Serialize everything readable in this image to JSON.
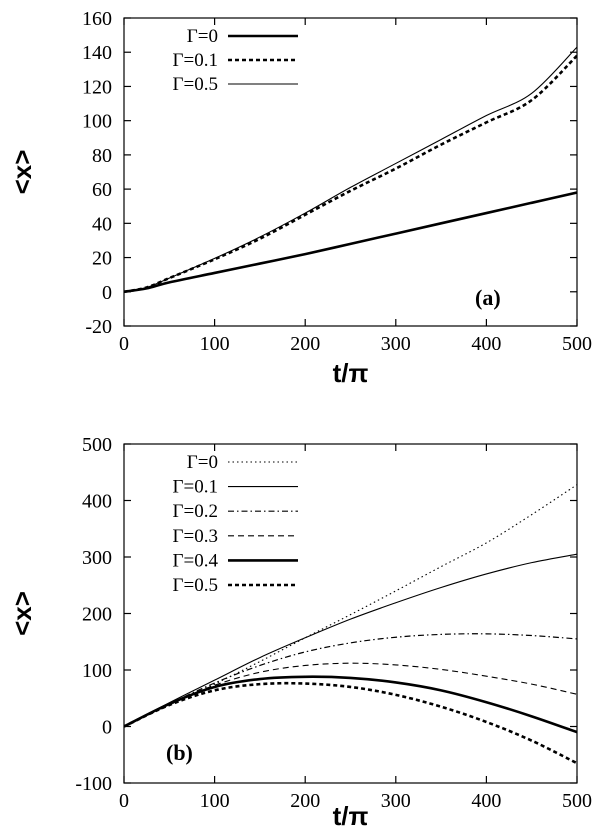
{
  "chart_data": [
    {
      "type": "line",
      "panel_label": "(a)",
      "xlabel": "t/π",
      "ylabel": "<x>",
      "xlim": [
        0,
        500
      ],
      "ylim": [
        -20,
        160
      ],
      "xticks": [
        "0",
        "100",
        "200",
        "300",
        "400",
        "500"
      ],
      "yticks": [
        "-20",
        "0",
        "20",
        "40",
        "60",
        "80",
        "100",
        "120",
        "140",
        "160"
      ],
      "legend_position": "top-left",
      "series": [
        {
          "name": "Γ=0",
          "style": "solid-thick",
          "x": [
            0,
            25,
            50,
            100,
            150,
            200,
            250,
            300,
            350,
            400,
            450,
            500
          ],
          "y": [
            0,
            2,
            5.5,
            11,
            16.5,
            22,
            28,
            34,
            40,
            46,
            52,
            58
          ]
        },
        {
          "name": "Γ=0.1",
          "style": "dashed-thick",
          "x": [
            0,
            25,
            50,
            100,
            150,
            200,
            250,
            300,
            350,
            400,
            450,
            500
          ],
          "y": [
            0,
            2.5,
            8,
            19,
            31,
            45,
            59,
            72,
            86,
            99,
            112,
            138
          ]
        },
        {
          "name": "Γ=0.5",
          "style": "solid-thin",
          "x": [
            0,
            25,
            50,
            100,
            150,
            200,
            250,
            300,
            350,
            400,
            450,
            500
          ],
          "y": [
            0,
            2.5,
            8,
            19.5,
            32,
            46,
            61,
            75,
            89,
            103,
            116,
            143
          ]
        }
      ]
    },
    {
      "type": "line",
      "panel_label": "(b)",
      "xlabel": "t/π",
      "ylabel": "<x>",
      "xlim": [
        0,
        500
      ],
      "ylim": [
        -100,
        500
      ],
      "xticks": [
        "0",
        "100",
        "200",
        "300",
        "400",
        "500"
      ],
      "yticks": [
        "-100",
        "0",
        "100",
        "200",
        "300",
        "400",
        "500"
      ],
      "legend_position": "top-left",
      "series": [
        {
          "name": "Γ=0",
          "style": "dotted-thin",
          "x": [
            0,
            50,
            100,
            150,
            200,
            250,
            300,
            350,
            400,
            450,
            500
          ],
          "y": [
            0,
            38,
            75,
            115,
            157,
            198,
            240,
            283,
            325,
            375,
            428
          ]
        },
        {
          "name": "Γ=0.1",
          "style": "solid-thin",
          "x": [
            0,
            50,
            100,
            150,
            200,
            250,
            300,
            350,
            400,
            450,
            500
          ],
          "y": [
            0,
            42,
            82,
            122,
            157,
            190,
            219,
            246,
            270,
            290,
            305
          ]
        },
        {
          "name": "Γ=0.2",
          "style": "dashdot-thin",
          "x": [
            0,
            50,
            100,
            150,
            200,
            250,
            300,
            350,
            400,
            450,
            500
          ],
          "y": [
            0,
            40,
            77,
            108,
            132,
            148,
            158,
            163,
            164,
            161,
            155
          ]
        },
        {
          "name": "Γ=0.3",
          "style": "dashed-thin",
          "x": [
            0,
            50,
            100,
            150,
            200,
            250,
            300,
            350,
            400,
            450,
            500
          ],
          "y": [
            0,
            40,
            73,
            96,
            108,
            112,
            109,
            101,
            89,
            75,
            57
          ]
        },
        {
          "name": "Γ=0.4",
          "style": "solid-thick",
          "x": [
            0,
            50,
            100,
            150,
            200,
            250,
            300,
            350,
            400,
            450,
            500
          ],
          "y": [
            0,
            40,
            70,
            84,
            88,
            86,
            78,
            64,
            43,
            18,
            -10
          ]
        },
        {
          "name": "Γ=0.5",
          "style": "dashed-thick",
          "x": [
            0,
            50,
            100,
            150,
            200,
            250,
            300,
            350,
            400,
            450,
            500
          ],
          "y": [
            0,
            38,
            64,
            75,
            76,
            70,
            56,
            35,
            8,
            -25,
            -65
          ]
        }
      ]
    }
  ]
}
